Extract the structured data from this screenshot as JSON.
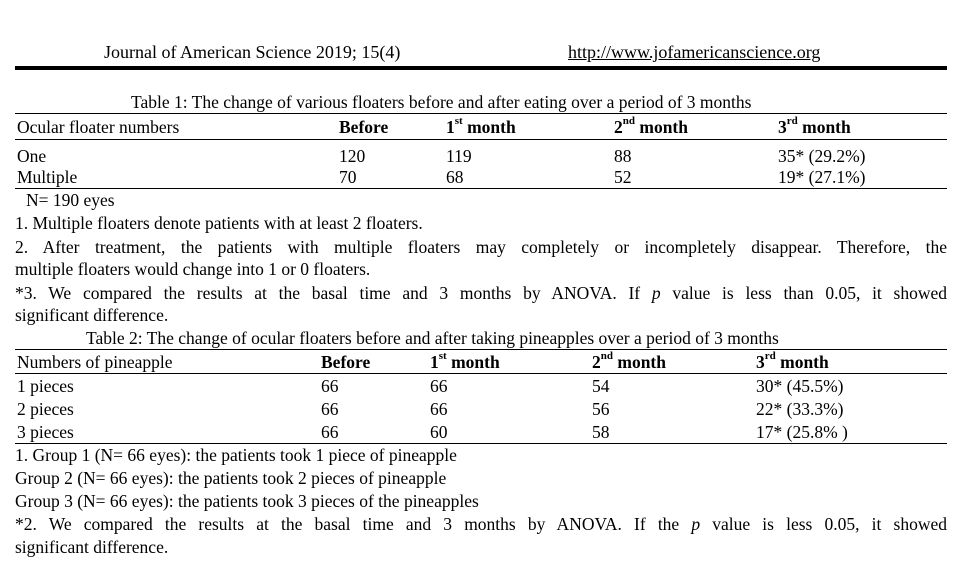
{
  "header": {
    "journal": "Journal of American Science 2019; 15(4)",
    "url": "http://www.jofamericanscience.org"
  },
  "table1": {
    "caption": "Table 1: The change of various floaters before and after eating over a period of 3 months",
    "columns": {
      "c0": "Ocular floater numbers",
      "c1": "Before",
      "c2_num": "1",
      "c2_sup": "st",
      "c2_text": " month",
      "c3_num": "2",
      "c3_sup": "nd",
      "c3_text": " month",
      "c4_num": "3",
      "c4_sup": "rd",
      "c4_text": " month"
    },
    "rows": [
      {
        "label": "One",
        "before": "120",
        "m1": "119",
        "m2": "88",
        "m3": "35* (29.2%)"
      },
      {
        "label": "Multiple",
        "before": "70",
        "m1": "68",
        "m2": "52",
        "m3": "19* (27.1%)"
      }
    ],
    "notes": {
      "n0": "N= 190 eyes",
      "n1": "1. Multiple floaters denote patients with at least 2 floaters.",
      "n2a": "2. After treatment, the patients with multiple floaters may completely or incompletely disappear. Therefore, the",
      "n2b": "multiple floaters would change into 1 or 0 floaters.",
      "n3a_pre": "*3. We compared the results at the basal time and 3 months by ANOVA. If ",
      "n3a_p": "p",
      "n3a_post": " value is less than 0.05, it showed",
      "n3b": "significant difference."
    }
  },
  "table2": {
    "caption": "Table 2: The change of ocular floaters before and after taking pineapples over a period of 3 months",
    "columns": {
      "c0": "Numbers of pineapple",
      "c1": "Before",
      "c2_num": "1",
      "c2_sup": "st",
      "c2_text": " month",
      "c3_num": "2",
      "c3_sup": "nd",
      "c3_text": " month",
      "c4_num": "3",
      "c4_sup": "rd",
      "c4_text": " month"
    },
    "rows": [
      {
        "label": "1 pieces",
        "before": "66",
        "m1": "66",
        "m2": "54",
        "m3": "30* (45.5%)"
      },
      {
        "label": "2 pieces",
        "before": "66",
        "m1": "66",
        "m2": "56",
        "m3": "22* (33.3%)"
      },
      {
        "label": "3 pieces",
        "before": "66",
        "m1": "60",
        "m2": "58",
        "m3": "17* (25.8% )"
      }
    ],
    "notes": {
      "g1": "1. Group 1 (N= 66 eyes): the patients took 1 piece of pineapple",
      "g2": "Group 2 (N= 66 eyes): the patients took 2 pieces of pineapple",
      "g3": "Group 3 (N= 66 eyes): the patients took 3 pieces of the pineapples",
      "n2a_pre": "*2. We compared the results at the basal time and 3 months by ANOVA. If the ",
      "n2a_p": "p",
      "n2a_post": " value is less 0.05, it showed",
      "n2b": "significant difference."
    }
  }
}
